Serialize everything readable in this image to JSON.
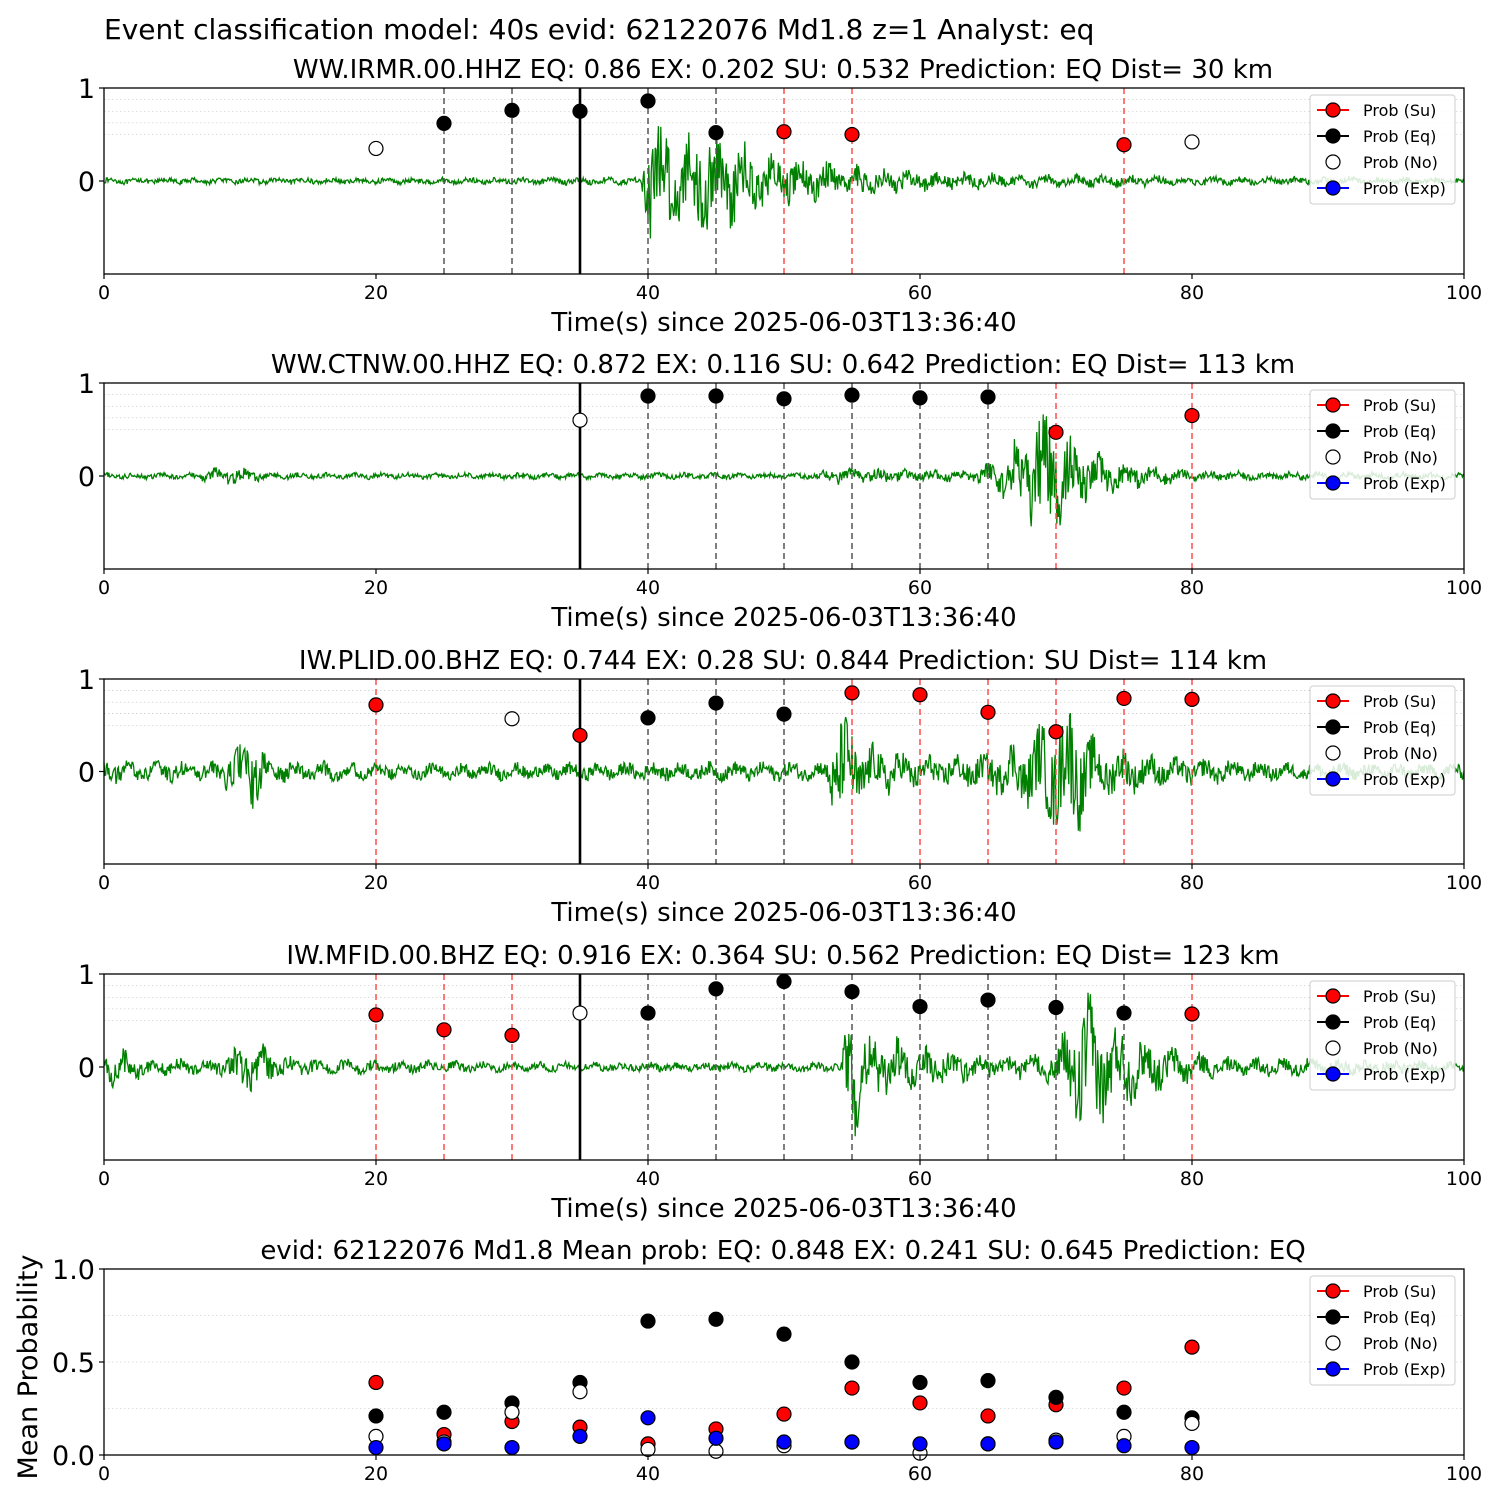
{
  "figure_title": "Event classification model: 40s evid: 62122076 Md1.8 z=1 Analyst: eq",
  "legend_labels": [
    "Prob (Su)",
    "Prob (Eq)",
    "Prob (No)",
    "Prob (Exp)"
  ],
  "colors": {
    "su": "#ff0000",
    "eq": "#000000",
    "no": "#ffffff",
    "exp": "#0000ff",
    "waveform": "#008000",
    "su_line": "#ff4d4d",
    "eq_line": "#555555"
  },
  "chart_data": [
    {
      "type": "scatter",
      "title": "WW.IRMR.00.HHZ   EQ: 0.86  EX: 0.202  SU: 0.532   Prediction: EQ    Dist= 30 km",
      "xlabel": "Time(s) since 2025-06-03T13:36:40",
      "ylabel": "",
      "xlim": [
        0,
        100
      ],
      "ylim": [
        -1,
        1
      ],
      "xticks": [
        "0",
        "20",
        "40",
        "60",
        "80",
        "100"
      ],
      "yticks": [
        "0",
        "1"
      ],
      "p_pick": 35,
      "waveform_envelope": [
        [
          0,
          0.04
        ],
        [
          30,
          0.04
        ],
        [
          39.5,
          0.05
        ],
        [
          40,
          0.9
        ],
        [
          42,
          0.55
        ],
        [
          45,
          0.65
        ],
        [
          48,
          0.35
        ],
        [
          52,
          0.25
        ],
        [
          60,
          0.12
        ],
        [
          70,
          0.08
        ],
        [
          85,
          0.05
        ],
        [
          100,
          0.04
        ]
      ],
      "points": [
        {
          "t": 20,
          "class": "no",
          "p": 0.35
        },
        {
          "t": 25,
          "class": "eq",
          "p": 0.62
        },
        {
          "t": 30,
          "class": "eq",
          "p": 0.76
        },
        {
          "t": 35,
          "class": "eq",
          "p": 0.75
        },
        {
          "t": 40,
          "class": "eq",
          "p": 0.86
        },
        {
          "t": 45,
          "class": "eq",
          "p": 0.52
        },
        {
          "t": 50,
          "class": "su",
          "p": 0.53
        },
        {
          "t": 55,
          "class": "su",
          "p": 0.5
        },
        {
          "t": 75,
          "class": "su",
          "p": 0.39
        },
        {
          "t": 80,
          "class": "no",
          "p": 0.42
        }
      ],
      "grid": "horizontal",
      "legend": "upper-right"
    },
    {
      "type": "scatter",
      "title": "WW.CTNW.00.HHZ   EQ: 0.872  EX: 0.116  SU: 0.642   Prediction: EQ    Dist= 113 km",
      "xlabel": "Time(s) since 2025-06-03T13:36:40",
      "ylabel": "",
      "xlim": [
        0,
        100
      ],
      "ylim": [
        -1,
        1
      ],
      "xticks": [
        "0",
        "20",
        "40",
        "60",
        "80",
        "100"
      ],
      "yticks": [
        "0",
        "1"
      ],
      "p_pick": 35,
      "waveform_envelope": [
        [
          0,
          0.04
        ],
        [
          7,
          0.04
        ],
        [
          8,
          0.12
        ],
        [
          10,
          0.1
        ],
        [
          12,
          0.04
        ],
        [
          52,
          0.04
        ],
        [
          54,
          0.1
        ],
        [
          60,
          0.08
        ],
        [
          64,
          0.06
        ],
        [
          66,
          0.25
        ],
        [
          68,
          0.6
        ],
        [
          69,
          0.9
        ],
        [
          71,
          0.45
        ],
        [
          74,
          0.2
        ],
        [
          80,
          0.06
        ],
        [
          100,
          0.04
        ]
      ],
      "points": [
        {
          "t": 35,
          "class": "no",
          "p": 0.6
        },
        {
          "t": 40,
          "class": "eq",
          "p": 0.86
        },
        {
          "t": 45,
          "class": "eq",
          "p": 0.86
        },
        {
          "t": 50,
          "class": "eq",
          "p": 0.83
        },
        {
          "t": 55,
          "class": "eq",
          "p": 0.87
        },
        {
          "t": 60,
          "class": "eq",
          "p": 0.84
        },
        {
          "t": 65,
          "class": "eq",
          "p": 0.85
        },
        {
          "t": 70,
          "class": "su",
          "p": 0.47
        },
        {
          "t": 80,
          "class": "su",
          "p": 0.65
        }
      ],
      "grid": "horizontal",
      "legend": "upper-right"
    },
    {
      "type": "scatter",
      "title": "IW.PLID.00.BHZ   EQ: 0.744  EX: 0.28  SU: 0.844   Prediction: SU    Dist= 114 km",
      "xlabel": "Time(s) since 2025-06-03T13:36:40",
      "ylabel": "",
      "xlim": [
        0,
        100
      ],
      "ylim": [
        -1,
        1
      ],
      "xticks": [
        "0",
        "20",
        "40",
        "60",
        "80",
        "100"
      ],
      "yticks": [
        "0",
        "1"
      ],
      "p_pick": 35,
      "waveform_envelope": [
        [
          0,
          0.14
        ],
        [
          8,
          0.12
        ],
        [
          10,
          0.35
        ],
        [
          11,
          0.5
        ],
        [
          12,
          0.15
        ],
        [
          20,
          0.1
        ],
        [
          53,
          0.12
        ],
        [
          54,
          0.75
        ],
        [
          56,
          0.35
        ],
        [
          60,
          0.2
        ],
        [
          65,
          0.22
        ],
        [
          68,
          0.45
        ],
        [
          71,
          0.85
        ],
        [
          73,
          0.35
        ],
        [
          78,
          0.18
        ],
        [
          88,
          0.1
        ],
        [
          100,
          0.1
        ]
      ],
      "points": [
        {
          "t": 20,
          "class": "su",
          "p": 0.72
        },
        {
          "t": 30,
          "class": "no",
          "p": 0.57
        },
        {
          "t": 35,
          "class": "su",
          "p": 0.39
        },
        {
          "t": 40,
          "class": "eq",
          "p": 0.58
        },
        {
          "t": 45,
          "class": "eq",
          "p": 0.74
        },
        {
          "t": 50,
          "class": "eq",
          "p": 0.62
        },
        {
          "t": 55,
          "class": "su",
          "p": 0.85
        },
        {
          "t": 60,
          "class": "su",
          "p": 0.83
        },
        {
          "t": 65,
          "class": "su",
          "p": 0.64
        },
        {
          "t": 70,
          "class": "su",
          "p": 0.43
        },
        {
          "t": 75,
          "class": "su",
          "p": 0.79
        },
        {
          "t": 80,
          "class": "su",
          "p": 0.78
        }
      ],
      "grid": "horizontal",
      "legend": "upper-right"
    },
    {
      "type": "scatter",
      "title": "IW.MFID.00.BHZ   EQ: 0.916  EX: 0.364  SU: 0.562   Prediction: EQ    Dist= 123 km",
      "xlabel": "Time(s) since 2025-06-03T13:36:40",
      "ylabel": "",
      "xlim": [
        0,
        100
      ],
      "ylim": [
        -1,
        1
      ],
      "xticks": [
        "0",
        "20",
        "40",
        "60",
        "80",
        "100"
      ],
      "yticks": [
        "0",
        "1"
      ],
      "p_pick": 35,
      "waveform_envelope": [
        [
          0,
          0.3
        ],
        [
          3,
          0.12
        ],
        [
          8,
          0.08
        ],
        [
          10,
          0.3
        ],
        [
          12,
          0.28
        ],
        [
          14,
          0.1
        ],
        [
          30,
          0.06
        ],
        [
          54,
          0.06
        ],
        [
          55,
          0.8
        ],
        [
          57,
          0.4
        ],
        [
          60,
          0.25
        ],
        [
          66,
          0.12
        ],
        [
          70,
          0.2
        ],
        [
          72,
          0.9
        ],
        [
          74,
          0.55
        ],
        [
          77,
          0.3
        ],
        [
          82,
          0.12
        ],
        [
          100,
          0.08
        ]
      ],
      "points": [
        {
          "t": 20,
          "class": "su",
          "p": 0.56
        },
        {
          "t": 25,
          "class": "su",
          "p": 0.4
        },
        {
          "t": 30,
          "class": "su",
          "p": 0.34
        },
        {
          "t": 35,
          "class": "no",
          "p": 0.58
        },
        {
          "t": 40,
          "class": "eq",
          "p": 0.58
        },
        {
          "t": 45,
          "class": "eq",
          "p": 0.84
        },
        {
          "t": 50,
          "class": "eq",
          "p": 0.92
        },
        {
          "t": 55,
          "class": "eq",
          "p": 0.81
        },
        {
          "t": 60,
          "class": "eq",
          "p": 0.65
        },
        {
          "t": 65,
          "class": "eq",
          "p": 0.72
        },
        {
          "t": 70,
          "class": "eq",
          "p": 0.64
        },
        {
          "t": 75,
          "class": "eq",
          "p": 0.58
        },
        {
          "t": 80,
          "class": "su",
          "p": 0.57
        }
      ],
      "grid": "horizontal",
      "legend": "upper-right"
    },
    {
      "type": "scatter",
      "title": "evid: 62122076  Md1.8   Mean prob:   EQ: 0.848  EX: 0.241  SU: 0.645   Prediction: EQ",
      "xlabel": "",
      "ylabel": "Mean Probability",
      "xlim": [
        0,
        100
      ],
      "ylim": [
        0,
        1
      ],
      "xticks": [
        "0",
        "20",
        "40",
        "60",
        "80",
        "100"
      ],
      "yticks": [
        "0.0",
        "0.5",
        "1.0"
      ],
      "x": [
        20,
        25,
        30,
        35,
        40,
        45,
        50,
        55,
        60,
        65,
        70,
        75,
        80
      ],
      "series": [
        {
          "name": "Prob (Su)",
          "class": "su",
          "values": [
            0.39,
            0.11,
            0.18,
            0.15,
            0.06,
            0.14,
            0.22,
            0.36,
            0.28,
            0.21,
            0.27,
            0.36,
            0.58
          ]
        },
        {
          "name": "Prob (Eq)",
          "class": "eq",
          "values": [
            0.21,
            0.23,
            0.28,
            0.39,
            0.72,
            0.73,
            0.65,
            0.5,
            0.39,
            0.4,
            0.31,
            0.23,
            0.2
          ]
        },
        {
          "name": "Prob (No)",
          "class": "no",
          "values": [
            0.1,
            0.07,
            0.23,
            0.34,
            0.03,
            0.02,
            0.05,
            0.07,
            0.01,
            0.06,
            0.08,
            0.1,
            0.17
          ]
        },
        {
          "name": "Prob (Exp)",
          "class": "exp",
          "values": [
            0.04,
            0.06,
            0.04,
            0.1,
            0.2,
            0.09,
            0.07,
            0.07,
            0.06,
            0.06,
            0.07,
            0.05,
            0.04
          ]
        }
      ],
      "grid": "horizontal",
      "legend": "upper-right"
    }
  ]
}
